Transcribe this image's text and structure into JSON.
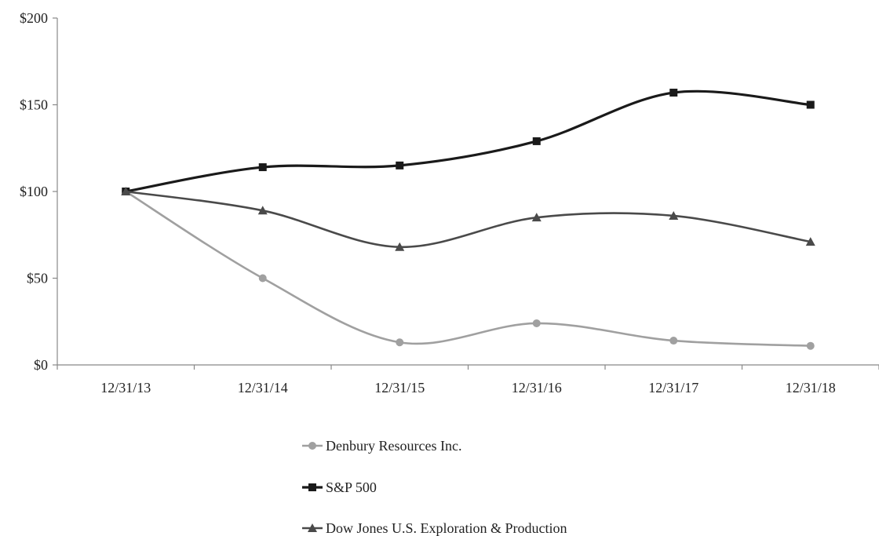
{
  "chart_data": {
    "type": "line",
    "title": "",
    "xlabel": "",
    "ylabel": "",
    "categories": [
      "12/31/13",
      "12/31/14",
      "12/31/15",
      "12/31/16",
      "12/31/17",
      "12/31/18"
    ],
    "ylim": [
      0,
      200
    ],
    "yticks": [
      0,
      50,
      100,
      150,
      200
    ],
    "ytick_labels": [
      "$0",
      "$50",
      "$100",
      "$150",
      "$200"
    ],
    "grid": false,
    "legend_position": "bottom-center",
    "series": [
      {
        "name": "Denbury Resources Inc.",
        "values": [
          100,
          50,
          13,
          24,
          14,
          11
        ],
        "color": "#a0a0a0",
        "marker": "circle"
      },
      {
        "name": "S&P 500",
        "values": [
          100,
          114,
          115,
          129,
          157,
          150
        ],
        "color": "#1a1a1a",
        "marker": "square"
      },
      {
        "name": "Dow Jones U.S. Exploration & Production",
        "values": [
          100,
          89,
          68,
          85,
          86,
          71
        ],
        "color": "#4a4a4a",
        "marker": "triangle"
      }
    ]
  }
}
